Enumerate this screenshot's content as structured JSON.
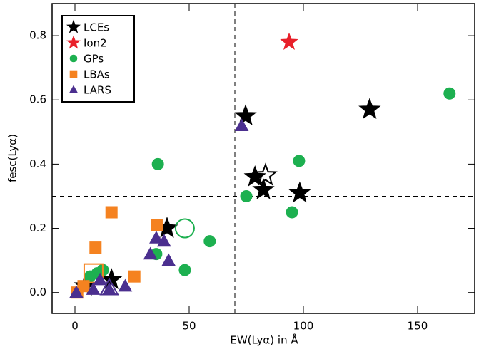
{
  "chart_data": {
    "type": "scatter",
    "xlabel": "EW(Lyα) in Å",
    "ylabel": "fesc(Lyα)",
    "xlim": [
      -10,
      175
    ],
    "ylim": [
      -0.065,
      0.9
    ],
    "xticks": [
      0,
      50,
      100,
      150
    ],
    "yticks": [
      {
        "value": 0,
        "label": "0.0"
      },
      0.2,
      0.4,
      0.6,
      0.8
    ],
    "vline": 70,
    "hline": 0.3,
    "legend": "top-left",
    "series": [
      {
        "name": "LCEs",
        "marker": "star",
        "color": "#000000",
        "x": [
          74.7,
          129,
          78.8,
          82.5,
          98.4,
          40.3,
          16,
          4.4,
          83.4
        ],
        "values": [
          0.55,
          0.57,
          0.36,
          0.32,
          0.31,
          0.2,
          0.04,
          0.02,
          0.365
        ],
        "filled": [
          true,
          true,
          true,
          true,
          true,
          true,
          true,
          true,
          false
        ]
      },
      {
        "name": "Ion2",
        "marker": "star",
        "color": "#e8202a",
        "x": [
          93.75
        ],
        "values": [
          0.78
        ],
        "filled": [
          true
        ]
      },
      {
        "name": "GPs",
        "marker": "circle",
        "color": "#1db050",
        "x": [
          164,
          36.3,
          98.1,
          75,
          95,
          59,
          48.1,
          35.6,
          48.1,
          12.2,
          9.7,
          6.6
        ],
        "values": [
          0.62,
          0.4,
          0.41,
          0.3,
          0.25,
          0.16,
          0.2,
          0.12,
          0.07,
          0.07,
          0.06,
          0.05
        ],
        "filled": [
          true,
          true,
          true,
          true,
          true,
          true,
          false,
          true,
          true,
          true,
          true,
          true
        ]
      },
      {
        "name": "LBAs",
        "marker": "square",
        "color": "#f58220",
        "x": [
          16,
          9,
          36,
          26,
          1,
          8.1,
          3.75
        ],
        "values": [
          0.25,
          0.14,
          0.21,
          0.05,
          0.0,
          0.06,
          0.02
        ],
        "filled": [
          true,
          true,
          true,
          true,
          true,
          false,
          true
        ]
      },
      {
        "name": "LARS",
        "marker": "triangle",
        "color": "#4b2f8f",
        "x": [
          73,
          35.6,
          39,
          33,
          41,
          22,
          15,
          8,
          0.6,
          15,
          11
        ],
        "values": [
          0.52,
          0.17,
          0.16,
          0.12,
          0.1,
          0.02,
          0.01,
          0.01,
          0.0,
          0.015,
          0.04
        ],
        "filled": [
          true,
          true,
          true,
          true,
          true,
          true,
          true,
          true,
          true,
          false,
          true
        ]
      }
    ]
  }
}
